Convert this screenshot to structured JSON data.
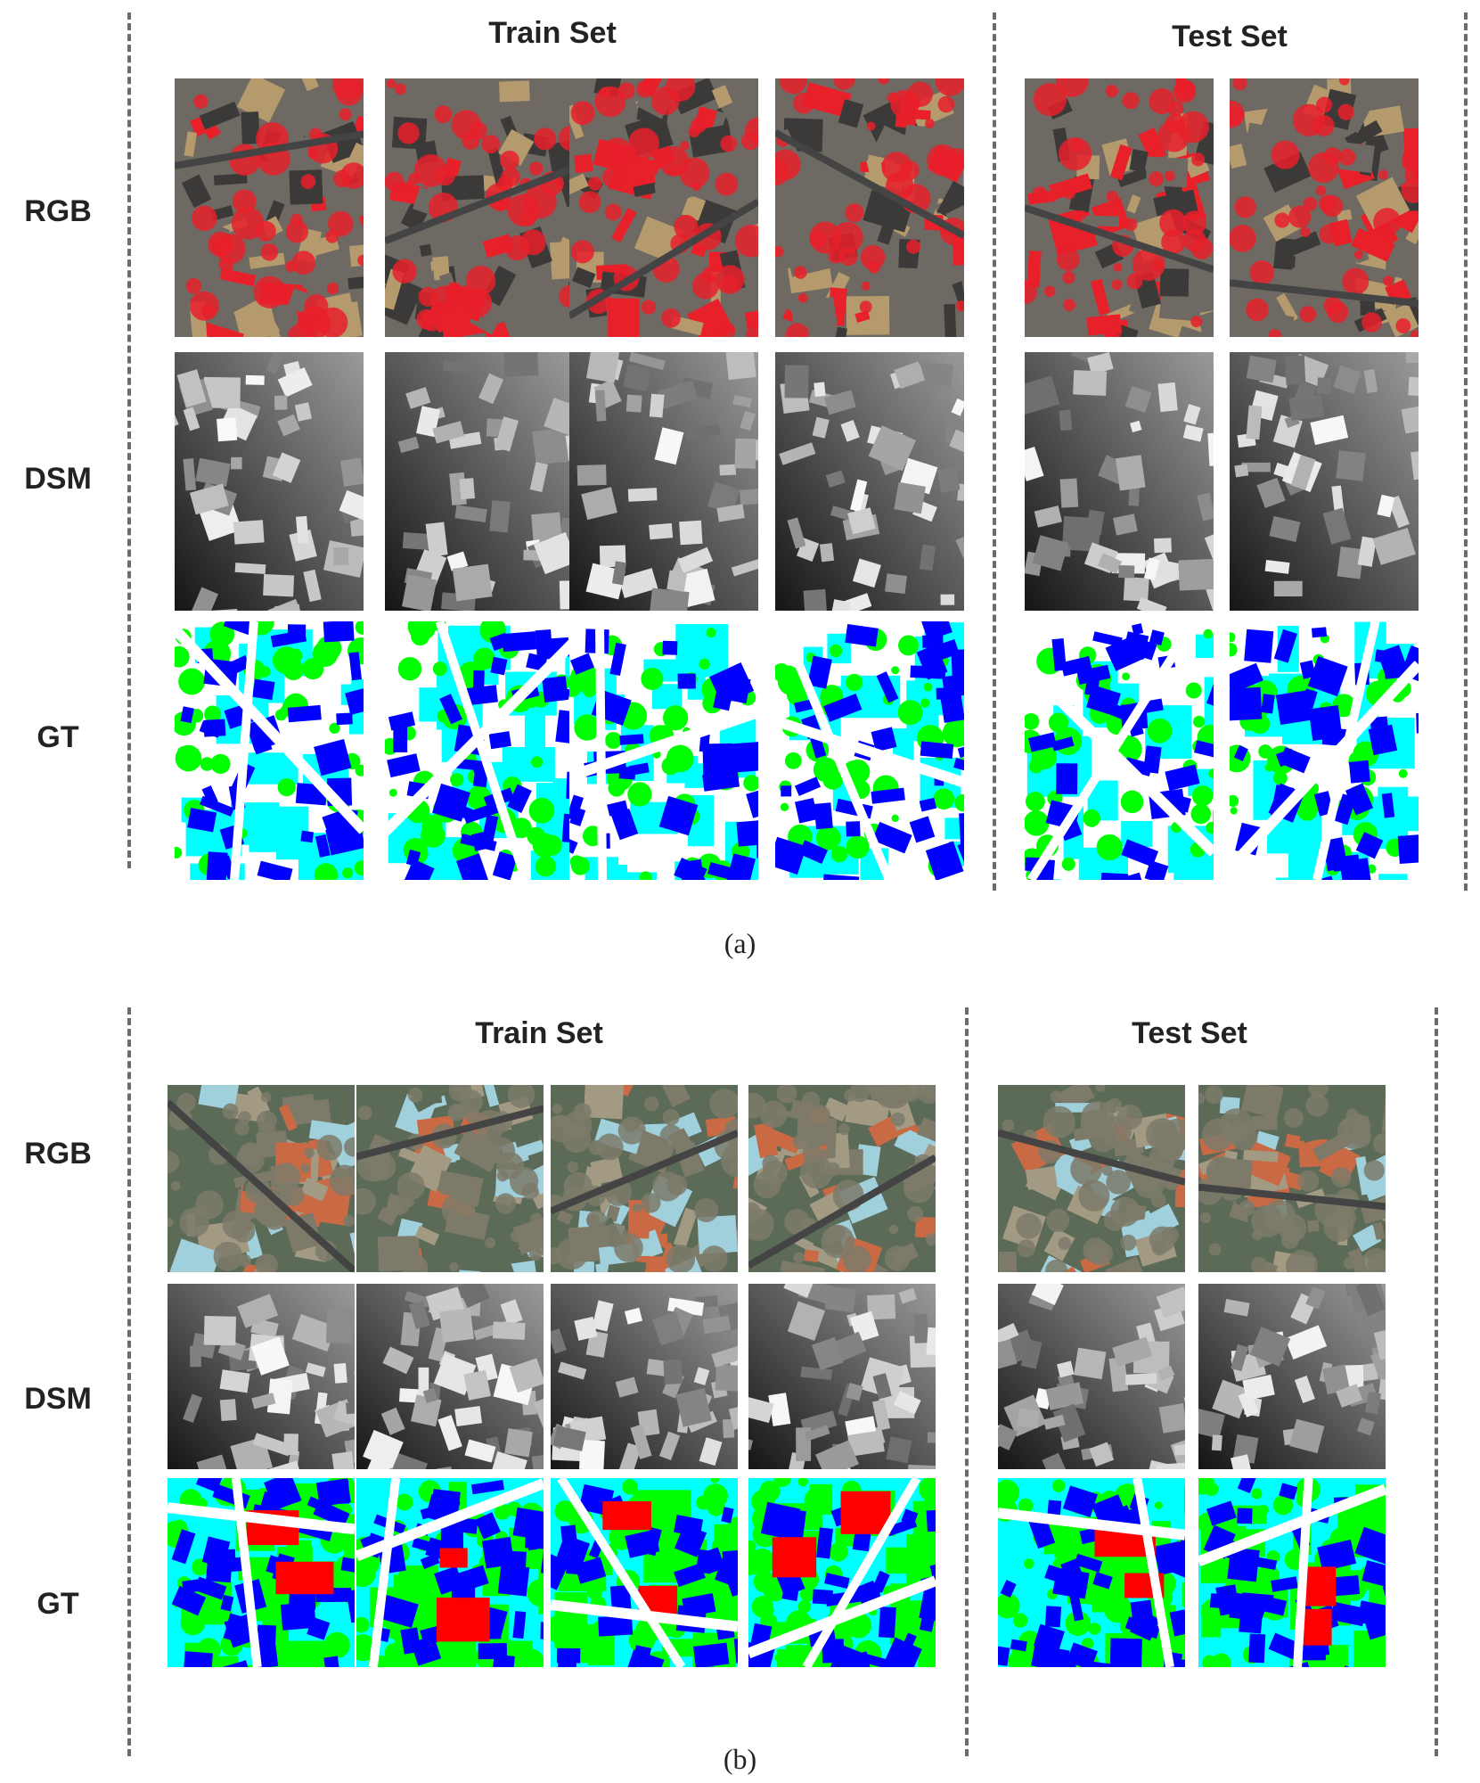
{
  "panels": [
    {
      "id": "a",
      "train_label": "Train Set",
      "test_label": "Test Set",
      "rows": [
        "RGB",
        "DSM",
        "GT"
      ],
      "caption": "(a)",
      "rgb_style": "false-color-infrared",
      "train_count": 4,
      "test_count": 2
    },
    {
      "id": "b",
      "train_label": "Train Set",
      "test_label": "Test Set",
      "rows": [
        "RGB",
        "DSM",
        "GT"
      ],
      "caption": "(b)",
      "rgb_style": "true-color",
      "train_count": 4,
      "test_count": 2
    }
  ],
  "gt_colors": {
    "impervious": "#ffffff",
    "building": "#0000ff",
    "low_vegetation": "#00ffff",
    "tree": "#00ff00",
    "car": "#ffff00",
    "clutter": "#ff0000"
  },
  "rgb_colors": {
    "false-color-infrared": [
      "#e8202a",
      "#6e6a63",
      "#3c3a38",
      "#b59a6e"
    ],
    "true-color": [
      "#7d7a6a",
      "#5c6a58",
      "#a39a84",
      "#c96a45",
      "#9fd0dc"
    ]
  }
}
